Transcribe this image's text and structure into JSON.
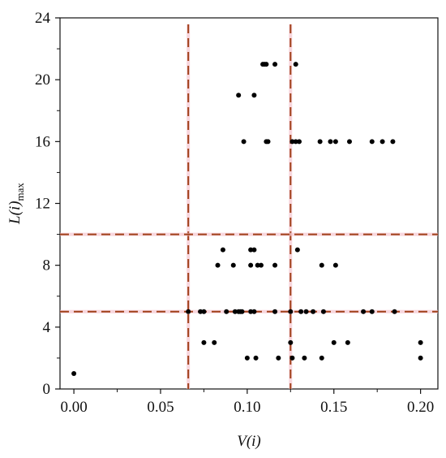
{
  "chart_data": {
    "type": "scatter",
    "title": "",
    "xlabel": "V(i)",
    "ylabel_main": "L(i)",
    "ylabel_sub": "max",
    "xlim": [
      -0.008,
      0.21
    ],
    "ylim": [
      0,
      24
    ],
    "xticks": [
      0.0,
      0.05,
      0.1,
      0.15,
      0.2
    ],
    "xtick_labels": [
      "0.00",
      "0.05",
      "0.10",
      "0.15",
      "0.20"
    ],
    "yticks": [
      0,
      4,
      8,
      12,
      16,
      20,
      24
    ],
    "ytick_labels": [
      "0",
      "4",
      "8",
      "12",
      "16",
      "20",
      "24"
    ],
    "grid": false,
    "reference_lines": {
      "vertical": [
        0.066,
        0.125
      ],
      "horizontal": [
        5,
        10
      ],
      "color": "#a0401a",
      "style": "dashed"
    },
    "points": [
      {
        "x": 0.0,
        "y": 1
      },
      {
        "x": 0.1,
        "y": 2
      },
      {
        "x": 0.105,
        "y": 2
      },
      {
        "x": 0.118,
        "y": 2
      },
      {
        "x": 0.126,
        "y": 2
      },
      {
        "x": 0.133,
        "y": 2
      },
      {
        "x": 0.143,
        "y": 2
      },
      {
        "x": 0.2,
        "y": 2
      },
      {
        "x": 0.075,
        "y": 3
      },
      {
        "x": 0.081,
        "y": 3
      },
      {
        "x": 0.125,
        "y": 3
      },
      {
        "x": 0.15,
        "y": 3
      },
      {
        "x": 0.158,
        "y": 3
      },
      {
        "x": 0.2,
        "y": 3
      },
      {
        "x": 0.066,
        "y": 5
      },
      {
        "x": 0.073,
        "y": 5
      },
      {
        "x": 0.075,
        "y": 5
      },
      {
        "x": 0.088,
        "y": 5
      },
      {
        "x": 0.093,
        "y": 5
      },
      {
        "x": 0.095,
        "y": 5
      },
      {
        "x": 0.096,
        "y": 5
      },
      {
        "x": 0.097,
        "y": 5
      },
      {
        "x": 0.102,
        "y": 5
      },
      {
        "x": 0.104,
        "y": 5
      },
      {
        "x": 0.116,
        "y": 5
      },
      {
        "x": 0.125,
        "y": 5
      },
      {
        "x": 0.131,
        "y": 5
      },
      {
        "x": 0.134,
        "y": 5
      },
      {
        "x": 0.138,
        "y": 5
      },
      {
        "x": 0.144,
        "y": 5
      },
      {
        "x": 0.167,
        "y": 5
      },
      {
        "x": 0.172,
        "y": 5
      },
      {
        "x": 0.185,
        "y": 5
      },
      {
        "x": 0.083,
        "y": 8
      },
      {
        "x": 0.092,
        "y": 8
      },
      {
        "x": 0.102,
        "y": 8
      },
      {
        "x": 0.106,
        "y": 8
      },
      {
        "x": 0.108,
        "y": 8
      },
      {
        "x": 0.116,
        "y": 8
      },
      {
        "x": 0.143,
        "y": 8
      },
      {
        "x": 0.151,
        "y": 8
      },
      {
        "x": 0.086,
        "y": 9
      },
      {
        "x": 0.102,
        "y": 9
      },
      {
        "x": 0.104,
        "y": 9
      },
      {
        "x": 0.129,
        "y": 9
      },
      {
        "x": 0.098,
        "y": 16
      },
      {
        "x": 0.111,
        "y": 16
      },
      {
        "x": 0.112,
        "y": 16
      },
      {
        "x": 0.126,
        "y": 16
      },
      {
        "x": 0.128,
        "y": 16
      },
      {
        "x": 0.13,
        "y": 16
      },
      {
        "x": 0.142,
        "y": 16
      },
      {
        "x": 0.148,
        "y": 16
      },
      {
        "x": 0.151,
        "y": 16
      },
      {
        "x": 0.159,
        "y": 16
      },
      {
        "x": 0.172,
        "y": 16
      },
      {
        "x": 0.178,
        "y": 16
      },
      {
        "x": 0.184,
        "y": 16
      },
      {
        "x": 0.095,
        "y": 19
      },
      {
        "x": 0.104,
        "y": 19
      },
      {
        "x": 0.109,
        "y": 21
      },
      {
        "x": 0.11,
        "y": 21
      },
      {
        "x": 0.111,
        "y": 21
      },
      {
        "x": 0.116,
        "y": 21
      },
      {
        "x": 0.128,
        "y": 21
      }
    ]
  }
}
